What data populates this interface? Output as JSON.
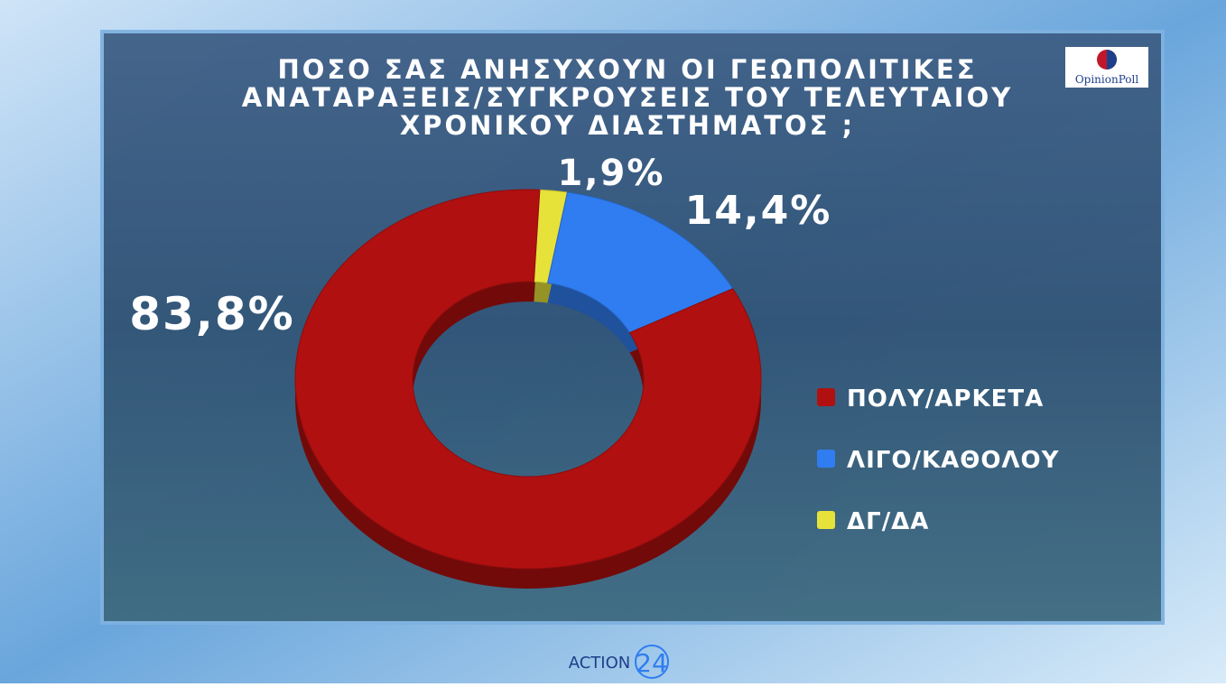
{
  "chart_data": {
    "type": "pie",
    "title": [
      "ΠΟΣΟ ΣΑΣ ΑΝΗΣΥΧΟΥΝ ΟΙ ΓΕΩΠΟΛΙΤΙΚΕΣ",
      "ΑΝΑΤΑΡΑΞΕΙΣ/ΣΥΓΚΡΟΥΣΕΙΣ ΤΟΥ ΤΕΛΕΥΤΑΙΟΥ",
      "ΧΡΟΝΙΚΟΥ ΔΙΑΣΤΗΜΑΤΟΣ ;"
    ],
    "categories": [
      "ΠΟΛΥ/ΑΡΚΕΤΑ",
      "ΛΙΓΟ/ΚΑΘΟΛΟΥ",
      "ΔΓ/ΔΑ"
    ],
    "values": [
      83.8,
      14.4,
      1.9
    ],
    "value_labels": [
      "83,8%",
      "14,4%",
      "1,9%"
    ],
    "colors": [
      "#b01010",
      "#2f7df0",
      "#e6e23a"
    ],
    "donut": true,
    "legend": "right"
  },
  "logos": {
    "pollster": "OpinionPoll",
    "channel": "ACTION",
    "channel_number": "24"
  }
}
